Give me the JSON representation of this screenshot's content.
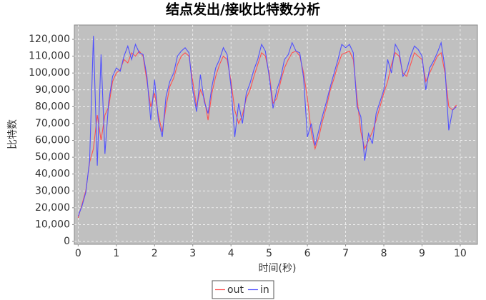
{
  "chart_data": {
    "type": "line",
    "title": "结点发出/接收比特数分析",
    "x_label": "时间(秒)",
    "y_label": "比特数",
    "x": [
      0.0,
      0.1,
      0.2,
      0.3,
      0.4,
      0.5,
      0.6,
      0.7,
      0.8,
      0.9,
      1.0,
      1.1,
      1.2,
      1.3,
      1.4,
      1.5,
      1.6,
      1.7,
      1.8,
      1.9,
      2.0,
      2.1,
      2.2,
      2.3,
      2.4,
      2.5,
      2.6,
      2.7,
      2.8,
      2.9,
      3.0,
      3.1,
      3.2,
      3.3,
      3.4,
      3.5,
      3.6,
      3.7,
      3.8,
      3.9,
      4.0,
      4.1,
      4.2,
      4.3,
      4.4,
      4.5,
      4.6,
      4.7,
      4.8,
      4.9,
      5.0,
      5.1,
      5.2,
      5.3,
      5.4,
      5.5,
      5.6,
      5.7,
      5.8,
      5.9,
      6.0,
      6.1,
      6.2,
      6.3,
      6.4,
      6.5,
      6.6,
      6.7,
      6.8,
      6.9,
      7.0,
      7.1,
      7.2,
      7.3,
      7.4,
      7.5,
      7.6,
      7.7,
      7.8,
      7.9,
      8.0,
      8.1,
      8.2,
      8.3,
      8.4,
      8.5,
      8.6,
      8.7,
      8.8,
      8.9,
      9.0,
      9.1,
      9.2,
      9.3,
      9.4,
      9.5,
      9.6,
      9.7,
      9.8,
      9.9
    ],
    "series": [
      {
        "name": "out",
        "color": "#ff5050",
        "values": [
          14000,
          22000,
          30000,
          47000,
          55000,
          75000,
          60000,
          75000,
          80000,
          95000,
          100000,
          102000,
          108000,
          106000,
          112000,
          110000,
          113000,
          110000,
          95000,
          80000,
          88000,
          75000,
          65000,
          80000,
          92000,
          97000,
          105000,
          110000,
          112000,
          110000,
          95000,
          80000,
          90000,
          85000,
          72000,
          88000,
          98000,
          105000,
          110000,
          108000,
          95000,
          78000,
          70000,
          75000,
          85000,
          90000,
          98000,
          105000,
          112000,
          110000,
          100000,
          82000,
          85000,
          95000,
          103000,
          108000,
          112000,
          113000,
          110000,
          100000,
          85000,
          65000,
          55000,
          62000,
          72000,
          80000,
          90000,
          97000,
          105000,
          111000,
          112000,
          113000,
          108000,
          85000,
          65000,
          55000,
          60000,
          65000,
          72000,
          80000,
          88000,
          95000,
          105000,
          112000,
          110000,
          100000,
          98000,
          105000,
          112000,
          110000,
          108000,
          95000,
          100000,
          105000,
          110000,
          112000,
          100000,
          80000,
          78000,
          81000
        ]
      },
      {
        "name": "in",
        "color": "#5050ff",
        "values": [
          15000,
          21000,
          29000,
          48000,
          122000,
          45000,
          111000,
          52000,
          83000,
          98000,
          103000,
          101000,
          110000,
          116000,
          108000,
          117000,
          112000,
          111000,
          98000,
          72000,
          96000,
          72000,
          62000,
          86000,
          95000,
          100000,
          110000,
          113000,
          115000,
          112000,
          90000,
          77000,
          99000,
          83000,
          76000,
          92000,
          103000,
          108000,
          115000,
          111000,
          92000,
          62000,
          82000,
          70000,
          88000,
          94000,
          102000,
          108000,
          117000,
          113000,
          98000,
          79000,
          90000,
          97000,
          108000,
          111000,
          118000,
          113000,
          112000,
          97000,
          62000,
          70000,
          57000,
          66000,
          75000,
          83000,
          92000,
          100000,
          108000,
          117000,
          115000,
          117000,
          112000,
          80000,
          74000,
          48000,
          64000,
          58000,
          76000,
          83000,
          90000,
          108000,
          100000,
          117000,
          113000,
          98000,
          102000,
          110000,
          116000,
          114000,
          110000,
          90000,
          103000,
          107000,
          112000,
          118000,
          103000,
          66000,
          78000,
          80000
        ]
      }
    ],
    "xlim": [
      -0.1,
      10.45
    ],
    "xticks": [
      0,
      1,
      2,
      3,
      4,
      5,
      6,
      7,
      8,
      9,
      10
    ],
    "ylim": [
      -1700,
      128500
    ],
    "yticks": [
      0,
      {
        "value": 10000,
        "label": "10,000"
      },
      {
        "value": 20000,
        "label": "20,000"
      },
      {
        "value": 30000,
        "label": "30,000"
      },
      {
        "value": 40000,
        "label": "40,000"
      },
      {
        "value": 50000,
        "label": "50,000"
      },
      {
        "value": 60000,
        "label": "60,000"
      },
      {
        "value": 70000,
        "label": "70,000"
      },
      {
        "value": 80000,
        "label": "80,000"
      },
      {
        "value": 90000,
        "label": "90,000"
      },
      {
        "value": 100000,
        "label": "100,000"
      },
      {
        "value": 110000,
        "label": "110,000"
      },
      {
        "value": 120000,
        "label": "120,000"
      }
    ],
    "grid": true,
    "legend": "bottom"
  }
}
